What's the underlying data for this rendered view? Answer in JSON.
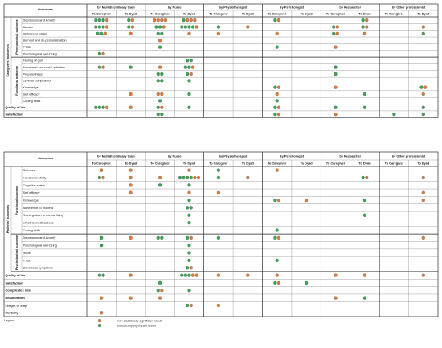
{
  "colors": {
    "orange": "#e07b39",
    "green": "#3aa655",
    "grid": "#7a7a7a"
  },
  "providers": [
    "by Multidisciplinary team",
    "by Nurse",
    "by Physiotherapist",
    "By Psychologist",
    "by Researcher",
    "by Other professionist"
  ],
  "subheaders": [
    "To Caregiver",
    "To Dyad"
  ],
  "outcomes_label": "Outcomes",
  "tables": [
    {
      "group_label": "Caregivers' outcomes",
      "sections": [
        {
          "label": "Psychological outcome",
          "rows": [
            {
              "name": "Depression and Anxiety",
              "cells": [
                "GGGO",
                "GO",
                "OOOO",
                "GOOO",
                "",
                "",
                "GO",
                "",
                "",
                "GO",
                "",
                ""
              ]
            },
            {
              "name": "Burden",
              "cells": [
                "GGGO",
                "GO",
                "GGO",
                "GGGGO",
                "G",
                "O",
                "",
                "",
                "GO",
                "GO",
                "",
                "O"
              ]
            },
            {
              "name": "Distress or Strain",
              "cells": [
                "GGO",
                "O",
                "GG",
                "O",
                "O",
                "",
                "O",
                "",
                "GO",
                "O",
                "",
                "G"
              ]
            },
            {
              "name": "Burnout and de-personalisation",
              "cells": [
                "",
                "",
                "O",
                "",
                "",
                "",
                "",
                "",
                "",
                "",
                "",
                ""
              ]
            },
            {
              "name": "PTSD",
              "cells": [
                "",
                "",
                "G",
                "",
                "",
                "",
                "G",
                "",
                "O",
                "",
                "",
                ""
              ]
            },
            {
              "name": "Psychological well-being",
              "cells": [
                "GO",
                "",
                "",
                "",
                "",
                "",
                "",
                "",
                "",
                "",
                "",
                ""
              ]
            }
          ]
        },
        {
          "label": "Functional outcome",
          "rows": [
            {
              "name": "Feeling of guilt",
              "cells": [
                "",
                "",
                "",
                "GG",
                "",
                "",
                "",
                "",
                "",
                "",
                "",
                ""
              ]
            },
            {
              "name": "Functional and social activities",
              "cells": [
                "GO",
                "G",
                "O",
                "GGO",
                "",
                "",
                "",
                "",
                "G",
                "",
                "",
                ""
              ]
            },
            {
              "name": "Preparedness",
              "cells": [
                "",
                "",
                "GG",
                "GO",
                "",
                "",
                "",
                "",
                "G",
                "",
                "",
                ""
              ]
            },
            {
              "name": "Level of competence",
              "cells": [
                "",
                "",
                "GG",
                "G",
                "",
                "",
                "",
                "",
                "",
                "",
                "",
                ""
              ]
            },
            {
              "name": "Knowledge",
              "cells": [
                "",
                "",
                "",
                "",
                "",
                "",
                "GO",
                "",
                "O",
                "",
                "",
                "GO"
              ]
            },
            {
              "name": "Self efficacy",
              "cells": [
                "",
                "O",
                "OO",
                "G",
                "",
                "",
                "O",
                "",
                "",
                "G",
                "",
                "O"
              ]
            },
            {
              "name": "Coping skills",
              "cells": [
                "",
                "",
                "G",
                "",
                "",
                "",
                "G",
                "",
                "",
                "",
                "",
                ""
              ]
            }
          ]
        }
      ],
      "extra_rows": [
        {
          "name": "Quality of life",
          "cells": [
            "GGGO",
            "O",
            "GO",
            "G",
            "",
            "",
            "GO",
            "",
            "G",
            "G",
            "",
            "G"
          ]
        },
        {
          "name": "Satisfaction",
          "cells": [
            "",
            "",
            "GG",
            "",
            "",
            "",
            "GO",
            "",
            "O",
            "",
            "G",
            "G"
          ]
        }
      ]
    },
    {
      "group_label": "Patients' outcomes",
      "sections": [
        {
          "label": "Functional outcome",
          "rows": [
            {
              "name": "Self-care",
              "cells": [
                "O",
                "O",
                "",
                "O",
                "G",
                "",
                "O",
                "",
                "",
                "",
                "",
                ""
              ]
            },
            {
              "name": "Functional ability",
              "cells": [
                "GO",
                "O",
                "O",
                "GGGGOO",
                "G",
                "O",
                "",
                "",
                "",
                "GO",
                "",
                "O"
              ]
            },
            {
              "name": "Cognitive status",
              "cells": [
                "",
                "O",
                "G",
                "G",
                "",
                "",
                "",
                "",
                "",
                "",
                "",
                ""
              ]
            },
            {
              "name": "Self efficacy",
              "cells": [
                "",
                "O",
                "",
                "O",
                "O",
                "",
                "",
                "",
                "",
                "",
                "",
                "O"
              ]
            },
            {
              "name": "Knowledge",
              "cells": [
                "",
                "",
                "",
                "G",
                "",
                "",
                "GO",
                "O",
                "",
                "G",
                "",
                "O"
              ]
            },
            {
              "name": "Adherence to process",
              "cells": [
                "",
                "",
                "",
                "GG",
                "",
                "",
                "",
                "",
                "",
                "",
                "",
                ""
              ]
            },
            {
              "name": "Reintegration to normal living",
              "cells": [
                "",
                "",
                "",
                "G",
                "",
                "",
                "",
                "",
                "",
                "G",
                "",
                ""
              ]
            },
            {
              "name": "Lifestyle modifications",
              "cells": [
                "",
                "",
                "",
                "G",
                "",
                "",
                "",
                "",
                "",
                "",
                "",
                ""
              ]
            },
            {
              "name": "Coping skills",
              "cells": [
                "",
                "",
                "",
                "",
                "",
                "",
                "G",
                "",
                "",
                "",
                "",
                ""
              ]
            }
          ]
        },
        {
          "label": "Psychological outcome",
          "rows": [
            {
              "name": "Depression and Anxiety",
              "cells": [
                "G",
                "O",
                "GG",
                "GO",
                "G",
                "",
                "GO",
                "",
                "",
                "",
                "",
                "O"
              ]
            },
            {
              "name": "Psychological well-being",
              "cells": [
                "G",
                "",
                "",
                "G",
                "",
                "",
                "",
                "",
                "",
                "",
                "",
                ""
              ]
            },
            {
              "name": "Hope",
              "cells": [
                "",
                "",
                "",
                "G",
                "",
                "",
                "",
                "",
                "",
                "",
                "",
                ""
              ]
            },
            {
              "name": "PTSD",
              "cells": [
                "",
                "",
                "",
                "G",
                "",
                "",
                "G",
                "",
                "",
                "",
                "",
                ""
              ]
            },
            {
              "name": "Behavioral symptoms",
              "cells": [
                "",
                "",
                "",
                "GO",
                "",
                "",
                "",
                "",
                "",
                "",
                "",
                ""
              ]
            }
          ]
        }
      ],
      "extra_rows": [
        {
          "name": "Quality of life",
          "cells": [
            "GG",
            "O",
            "",
            "GGGOO",
            "O",
            "O",
            "O",
            "",
            "O",
            "O",
            "",
            "O"
          ]
        },
        {
          "name": "Satisfaction",
          "cells": [
            "",
            "",
            "G",
            "",
            "",
            "",
            "GO",
            "G",
            "",
            "",
            "",
            ""
          ]
        },
        {
          "name": "Complicates rate",
          "cells": [
            "",
            "",
            "GO",
            "G",
            "",
            "",
            "",
            "",
            "",
            "",
            "",
            ""
          ]
        },
        {
          "name": "Readmission",
          "cells": [
            "O",
            "O",
            "O",
            "",
            "",
            "",
            "",
            "",
            "O",
            "G",
            "",
            ""
          ]
        },
        {
          "name": "Lenght of stay",
          "cells": [
            "",
            "",
            "",
            "GO",
            "O",
            "",
            "",
            "",
            "",
            "",
            "",
            ""
          ]
        },
        {
          "name": "Mortality",
          "cells": [
            "O",
            "",
            "",
            "",
            "",
            "",
            "",
            "",
            "",
            "",
            "",
            ""
          ]
        }
      ]
    }
  ],
  "legend": {
    "label": "Legend:",
    "items": [
      {
        "color": "orange",
        "text": "non statistically significant result"
      },
      {
        "color": "green",
        "text": "statistically significant result"
      }
    ]
  }
}
